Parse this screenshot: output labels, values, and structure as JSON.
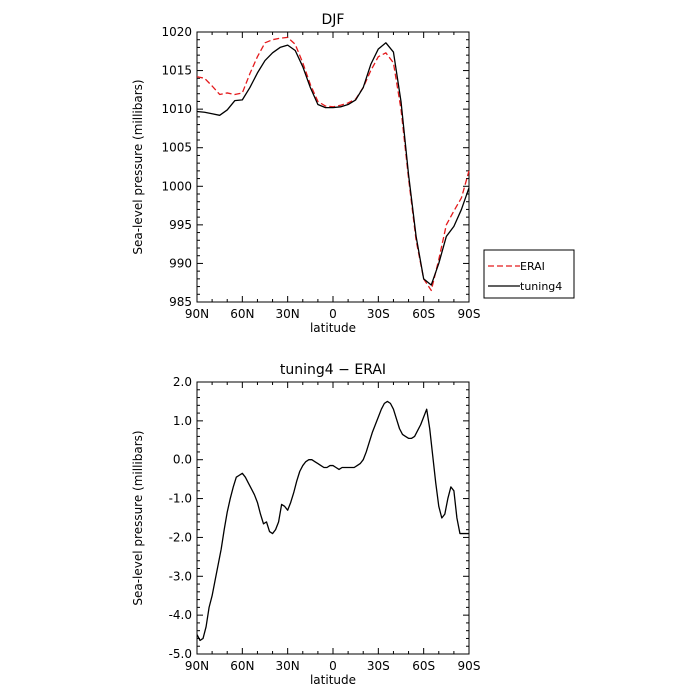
{
  "chart_data": [
    {
      "type": "line",
      "title": "DJF",
      "xlabel": "latitude",
      "ylabel": "Sea-level pressure (millibars)",
      "xlim": [
        -90,
        90
      ],
      "ylim": [
        985,
        1020
      ],
      "x_tick_labels": [
        "90N",
        "60N",
        "30N",
        "0",
        "30S",
        "60S",
        "90S"
      ],
      "x_tick_values": [
        -90,
        -60,
        -30,
        0,
        30,
        60,
        90
      ],
      "y_tick_labels": [
        "1020",
        "1015",
        "1010",
        "1005",
        "1000",
        "995",
        "990",
        "985"
      ],
      "y_tick_values": [
        1020,
        1015,
        1010,
        1005,
        1000,
        995,
        990,
        985
      ],
      "legend_position": "right",
      "series": [
        {
          "name": "ERAI",
          "color": "#e41a1c",
          "dash": "dashed",
          "x": [
            -90,
            -85,
            -80,
            -75,
            -70,
            -65,
            -60,
            -55,
            -50,
            -45,
            -40,
            -35,
            -30,
            -25,
            -20,
            -15,
            -10,
            -5,
            0,
            5,
            10,
            15,
            20,
            25,
            30,
            35,
            40,
            45,
            50,
            55,
            60,
            65,
            70,
            75,
            80,
            85,
            90
          ],
          "y": [
            1014.2,
            1014.0,
            1013.0,
            1011.9,
            1012.1,
            1011.9,
            1012.1,
            1014.6,
            1016.8,
            1018.6,
            1019.0,
            1019.2,
            1019.3,
            1018.4,
            1016.0,
            1013.2,
            1011.0,
            1010.4,
            1010.3,
            1010.5,
            1010.8,
            1011.3,
            1012.8,
            1015.0,
            1016.8,
            1017.3,
            1016.0,
            1010.0,
            1001.0,
            993.0,
            988.0,
            986.5,
            990.5,
            995.0,
            996.8,
            998.5,
            1002.0
          ]
        },
        {
          "name": "tuning4",
          "color": "#000000",
          "dash": "solid",
          "x": [
            -90,
            -85,
            -80,
            -75,
            -70,
            -65,
            -60,
            -55,
            -50,
            -45,
            -40,
            -35,
            -30,
            -25,
            -20,
            -15,
            -10,
            -5,
            0,
            5,
            10,
            15,
            20,
            25,
            30,
            35,
            40,
            45,
            50,
            55,
            60,
            65,
            70,
            75,
            80,
            85,
            90
          ],
          "y": [
            1009.7,
            1009.6,
            1009.4,
            1009.2,
            1009.9,
            1011.1,
            1011.2,
            1012.8,
            1014.7,
            1016.3,
            1017.3,
            1018.0,
            1018.3,
            1017.6,
            1015.5,
            1012.8,
            1010.6,
            1010.2,
            1010.2,
            1010.3,
            1010.6,
            1011.2,
            1012.8,
            1015.8,
            1017.8,
            1018.6,
            1017.4,
            1011.0,
            1001.5,
            993.5,
            988.0,
            987.2,
            990.0,
            993.5,
            994.8,
            997.0,
            999.8
          ]
        }
      ]
    },
    {
      "type": "line",
      "title": "tuning4 − ERAI",
      "xlabel": "latitude",
      "ylabel": "Sea-level pressure (millibars)",
      "xlim": [
        -90,
        90
      ],
      "ylim": [
        -5.0,
        2.0
      ],
      "x_tick_labels": [
        "90N",
        "60N",
        "30N",
        "0",
        "30S",
        "60S",
        "90S"
      ],
      "x_tick_values": [
        -90,
        -60,
        -30,
        0,
        30,
        60,
        90
      ],
      "y_tick_labels": [
        "2.0",
        "1.0",
        "0.0",
        "-1.0",
        "-2.0",
        "-3.0",
        "-4.0",
        "-5.0"
      ],
      "y_tick_values": [
        2.0,
        1.0,
        0.0,
        -1.0,
        -2.0,
        -3.0,
        -4.0,
        -5.0
      ],
      "series": [
        {
          "name": "tuning4 − ERAI",
          "color": "#000000",
          "dash": "solid",
          "x": [
            -90,
            -88,
            -86,
            -84,
            -82,
            -80,
            -78,
            -76,
            -74,
            -72,
            -70,
            -68,
            -66,
            -64,
            -62,
            -60,
            -58,
            -56,
            -54,
            -52,
            -50,
            -48,
            -46,
            -44,
            -42,
            -40,
            -38,
            -36,
            -34,
            -32,
            -30,
            -28,
            -26,
            -24,
            -22,
            -20,
            -18,
            -16,
            -14,
            -12,
            -10,
            -8,
            -6,
            -4,
            -2,
            0,
            2,
            4,
            6,
            8,
            10,
            12,
            14,
            16,
            18,
            20,
            22,
            24,
            26,
            28,
            30,
            32,
            34,
            36,
            38,
            40,
            42,
            44,
            46,
            48,
            50,
            52,
            54,
            56,
            58,
            60,
            62,
            64,
            66,
            68,
            70,
            72,
            74,
            76,
            78,
            80,
            82,
            84,
            86,
            88,
            90
          ],
          "y": [
            -4.5,
            -4.65,
            -4.6,
            -4.3,
            -3.8,
            -3.5,
            -3.1,
            -2.7,
            -2.3,
            -1.8,
            -1.35,
            -1.0,
            -0.7,
            -0.45,
            -0.4,
            -0.35,
            -0.45,
            -0.6,
            -0.75,
            -0.9,
            -1.1,
            -1.4,
            -1.65,
            -1.6,
            -1.85,
            -1.9,
            -1.8,
            -1.6,
            -1.15,
            -1.2,
            -1.3,
            -1.1,
            -0.85,
            -0.55,
            -0.3,
            -0.15,
            -0.05,
            0.0,
            0.0,
            -0.05,
            -0.1,
            -0.15,
            -0.2,
            -0.2,
            -0.15,
            -0.15,
            -0.2,
            -0.25,
            -0.2,
            -0.2,
            -0.2,
            -0.2,
            -0.2,
            -0.15,
            -0.1,
            0.0,
            0.2,
            0.45,
            0.7,
            0.9,
            1.1,
            1.3,
            1.45,
            1.5,
            1.45,
            1.3,
            1.05,
            0.8,
            0.65,
            0.6,
            0.55,
            0.55,
            0.6,
            0.75,
            0.9,
            1.1,
            1.3,
            0.8,
            0.1,
            -0.6,
            -1.2,
            -1.5,
            -1.4,
            -1.0,
            -0.7,
            -0.8,
            -1.5,
            -1.9,
            -1.9,
            -1.9,
            -1.9
          ]
        }
      ]
    }
  ]
}
